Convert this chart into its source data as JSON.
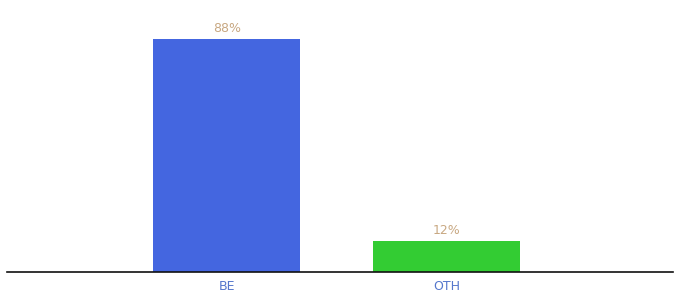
{
  "categories": [
    "BE",
    "OTH"
  ],
  "values": [
    88,
    12
  ],
  "bar_colors": [
    "#4466e0",
    "#33cc33"
  ],
  "label_color": "#c8a882",
  "label_fontsize": 9,
  "xlabel_fontsize": 9,
  "xlabel_color": "#5577cc",
  "bar_width": 0.22,
  "x_positions": [
    0.33,
    0.66
  ],
  "xlim": [
    0.0,
    1.0
  ],
  "ylim": [
    0,
    100
  ],
  "background_color": "#ffffff"
}
